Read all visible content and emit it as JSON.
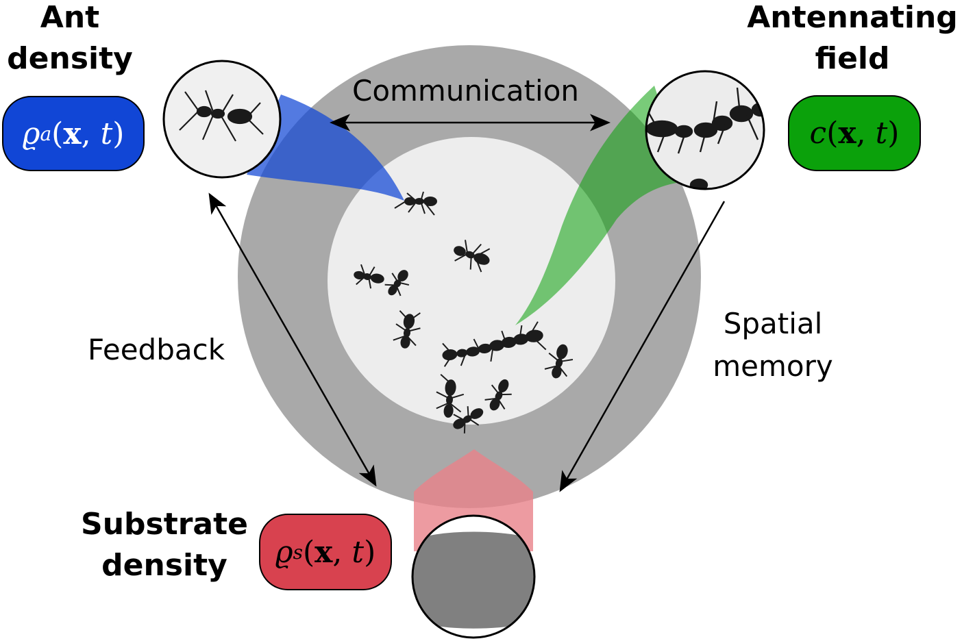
{
  "colors": {
    "ant_density": "#1146d6",
    "antennating_field": "#0ba10b",
    "substrate_density": "#d8424f",
    "dish_outer": "#a9a9a9",
    "dish_inner": "#ededed",
    "substrate_fill": "#808080"
  },
  "nodes": {
    "ant_density": {
      "title_line1": "Ant",
      "title_line2": "density",
      "formula_symbol": "ϱ",
      "formula_sub": "a",
      "formula_open": "(",
      "formula_x": "x",
      "formula_sep": ",",
      "formula_t": "t",
      "formula_close": ")"
    },
    "antennating_field": {
      "title_line1": "Antennating",
      "title_line2": "field",
      "formula_symbol": "c",
      "formula_sub": "",
      "formula_open": "(",
      "formula_x": "x",
      "formula_sep": ",",
      "formula_t": "t",
      "formula_close": ")"
    },
    "substrate_density": {
      "title_line1": "Substrate",
      "title_line2": "density",
      "formula_symbol": "ϱ",
      "formula_sub": "s",
      "formula_open": "(",
      "formula_x": "x",
      "formula_sep": ",",
      "formula_t": "t",
      "formula_close": ")"
    }
  },
  "edges": {
    "communication": "Communication",
    "feedback": "Feedback",
    "spatial_memory_line1": "Spatial",
    "spatial_memory_line2": "memory"
  }
}
